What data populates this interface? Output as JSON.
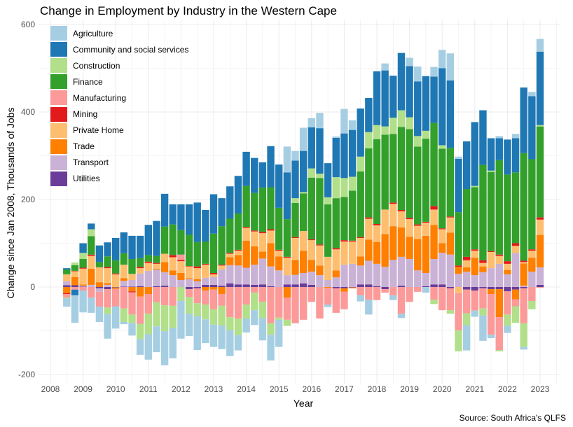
{
  "chart_data": {
    "type": "bar",
    "stacked": true,
    "title": "Change in Employment by Industry in the Western Cape",
    "xlabel": "Year",
    "ylabel": "Change since Jan 2008, Thousands of Jobs",
    "source": "Source: South Africa's QLFS",
    "xlim": [
      2007.7,
      2023.6
    ],
    "ylim": [
      -230,
      600
    ],
    "xticks": [
      2008,
      2009,
      2010,
      2011,
      2012,
      2013,
      2014,
      2015,
      2016,
      2017,
      2018,
      2019,
      2020,
      2021,
      2022,
      2023
    ],
    "yticks": [
      -200,
      0,
      200,
      400,
      600
    ],
    "grid": true,
    "legend_position": "top-left inside",
    "x": [
      2008.5,
      2008.75,
      2009,
      2009.25,
      2009.5,
      2009.75,
      2010,
      2010.25,
      2010.5,
      2010.75,
      2011,
      2011.25,
      2011.5,
      2011.75,
      2012,
      2012.25,
      2012.5,
      2012.75,
      2013,
      2013.25,
      2013.5,
      2013.75,
      2014,
      2014.25,
      2014.5,
      2014.75,
      2015,
      2015.25,
      2015.5,
      2015.75,
      2016,
      2016.25,
      2016.5,
      2016.75,
      2017,
      2017.25,
      2017.5,
      2017.75,
      2018,
      2018.25,
      2018.5,
      2018.75,
      2019,
      2019.25,
      2019.5,
      2019.75,
      2020,
      2020.25,
      2020.5,
      2020.75,
      2021,
      2021.25,
      2021.5,
      2021.75,
      2022,
      2022.25,
      2022.5,
      2022.75,
      2023
    ],
    "series": [
      {
        "name": "Agriculture",
        "color": "#A6CEE3",
        "values": [
          -19,
          -63,
          -50,
          -35,
          -35,
          -56,
          -51,
          -5,
          -29,
          -36,
          -58,
          -59,
          -78,
          -69,
          -86,
          -51,
          -77,
          -54,
          -51,
          -54,
          -59,
          -35,
          -32,
          -34,
          -51,
          -59,
          -62,
          59,
          22,
          53,
          21,
          35,
          -6,
          3,
          56,
          22,
          -14,
          -34,
          0,
          16,
          -11,
          -10,
          19,
          34,
          -13,
          22,
          42,
          62,
          5,
          -58,
          -14,
          -58,
          -8,
          5,
          -16,
          10,
          -6,
          10,
          29
        ]
      },
      {
        "name": "Community and social services",
        "color": "#1F78B4",
        "values": [
          3,
          -13,
          22,
          13,
          38,
          32,
          51,
          48,
          53,
          51,
          69,
          80,
          75,
          46,
          59,
          69,
          90,
          72,
          90,
          64,
          74,
          86,
          78,
          80,
          58,
          94,
          99,
          107,
          86,
          94,
          94,
          104,
          78,
          90,
          102,
          107,
          110,
          78,
          123,
          128,
          96,
          131,
          117,
          125,
          125,
          106,
          176,
          154,
          122,
          109,
          146,
          125,
          74,
          50,
          80,
          78,
          150,
          144,
          168
        ]
      },
      {
        "name": "Construction",
        "color": "#B2DF8A",
        "values": [
          -2,
          6,
          14,
          16,
          0,
          -15,
          0,
          -31,
          -19,
          -35,
          -47,
          -55,
          -59,
          -51,
          -32,
          -38,
          -30,
          -34,
          -35,
          -45,
          -30,
          -38,
          -32,
          -40,
          -37,
          -26,
          -5,
          -14,
          11,
          3,
          21,
          10,
          16,
          48,
          43,
          32,
          34,
          37,
          32,
          19,
          37,
          38,
          27,
          24,
          18,
          -10,
          8,
          -8,
          -48,
          -27,
          3,
          -16,
          3,
          -3,
          -26,
          -38,
          -54,
          -19,
          3
        ]
      },
      {
        "name": "Finance",
        "color": "#33A02C",
        "values": [
          11,
          13,
          20,
          42,
          12,
          24,
          30,
          26,
          34,
          20,
          15,
          16,
          62,
          70,
          56,
          72,
          56,
          51,
          90,
          88,
          78,
          83,
          94,
          86,
          101,
          96,
          96,
          86,
          78,
          86,
          141,
          152,
          120,
          114,
          99,
          114,
          150,
          158,
          194,
          171,
          157,
          190,
          203,
          178,
          190,
          190,
          182,
          157,
          122,
          155,
          142,
          218,
          181,
          216,
          198,
          162,
          246,
          206,
          208
        ]
      },
      {
        "name": "Manufacturing",
        "color": "#FB9A99",
        "values": [
          -8,
          -6,
          -8,
          -24,
          -34,
          -42,
          -40,
          -49,
          -51,
          -62,
          -45,
          -35,
          -42,
          -43,
          12,
          -18,
          -34,
          -32,
          -45,
          -27,
          -69,
          -72,
          -40,
          -13,
          -34,
          -83,
          -70,
          -51,
          -83,
          -75,
          -34,
          -72,
          -38,
          -56,
          -40,
          0,
          -19,
          -29,
          -30,
          -8,
          -19,
          -61,
          -34,
          -11,
          0,
          -29,
          -53,
          -50,
          -85,
          -54,
          -46,
          -46,
          -93,
          -75,
          -53,
          -16,
          -80,
          -32,
          -2
        ]
      },
      {
        "name": "Mining",
        "color": "#E31A1C",
        "values": [
          -2,
          1,
          2,
          3,
          0,
          3,
          2,
          0,
          -2,
          3,
          3,
          2,
          0,
          5,
          3,
          1,
          4,
          2,
          3,
          2,
          2,
          2,
          2,
          2,
          3,
          3,
          2,
          2,
          2,
          0,
          2,
          2,
          0,
          3,
          3,
          2,
          2,
          3,
          3,
          0,
          3,
          3,
          3,
          3,
          2,
          8,
          2,
          2,
          3,
          8,
          3,
          6,
          2,
          3,
          6,
          6,
          3,
          3,
          5
        ]
      },
      {
        "name": "Private Home",
        "color": "#FDBF6F",
        "values": [
          16,
          13,
          36,
          29,
          34,
          34,
          29,
          31,
          14,
          12,
          18,
          11,
          19,
          30,
          27,
          27,
          25,
          30,
          6,
          9,
          8,
          10,
          29,
          34,
          42,
          29,
          13,
          40,
          50,
          45,
          45,
          46,
          53,
          48,
          53,
          51,
          42,
          48,
          38,
          56,
          51,
          37,
          40,
          30,
          30,
          35,
          32,
          35,
          -14,
          16,
          16,
          8,
          37,
          18,
          14,
          16,
          3,
          16,
          35
        ]
      },
      {
        "name": "Trade",
        "color": "#FF7F00",
        "values": [
          -14,
          19,
          3,
          37,
          11,
          4,
          -3,
          6,
          -10,
          -22,
          -16,
          2,
          23,
          11,
          16,
          2,
          5,
          -8,
          -6,
          -16,
          18,
          24,
          62,
          42,
          16,
          53,
          32,
          -24,
          34,
          51,
          27,
          22,
          -2,
          16,
          -8,
          -2,
          21,
          48,
          50,
          75,
          77,
          67,
          51,
          72,
          85,
          78,
          22,
          50,
          16,
          10,
          40,
          13,
          -11,
          -64,
          10,
          -22,
          51,
          32,
          74
        ]
      },
      {
        "name": "Transport",
        "color": "#CAB2D6",
        "values": [
          9,
          0,
          2,
          5,
          -8,
          5,
          0,
          13,
          15,
          29,
          37,
          38,
          31,
          27,
          16,
          18,
          13,
          16,
          18,
          37,
          42,
          43,
          38,
          46,
          59,
          45,
          38,
          21,
          22,
          24,
          30,
          27,
          16,
          22,
          51,
          53,
          43,
          54,
          51,
          46,
          62,
          66,
          64,
          38,
          30,
          58,
          72,
          74,
          30,
          35,
          27,
          34,
          43,
          53,
          29,
          78,
          3,
          35,
          40
        ]
      },
      {
        "name": "Utilities",
        "color": "#6A3D9A",
        "values": [
          4,
          4,
          1,
          0,
          -3,
          -5,
          -1,
          1,
          1,
          2,
          0,
          2,
          3,
          0,
          0,
          -5,
          -3,
          5,
          5,
          3,
          8,
          6,
          6,
          5,
          6,
          2,
          0,
          6,
          6,
          8,
          5,
          0,
          0,
          -3,
          -3,
          -1,
          6,
          6,
          2,
          -5,
          0,
          3,
          0,
          0,
          2,
          6,
          6,
          -3,
          0,
          -6,
          -8,
          -3,
          -5,
          -5,
          -10,
          -6,
          -3,
          0,
          5
        ]
      }
    ]
  }
}
